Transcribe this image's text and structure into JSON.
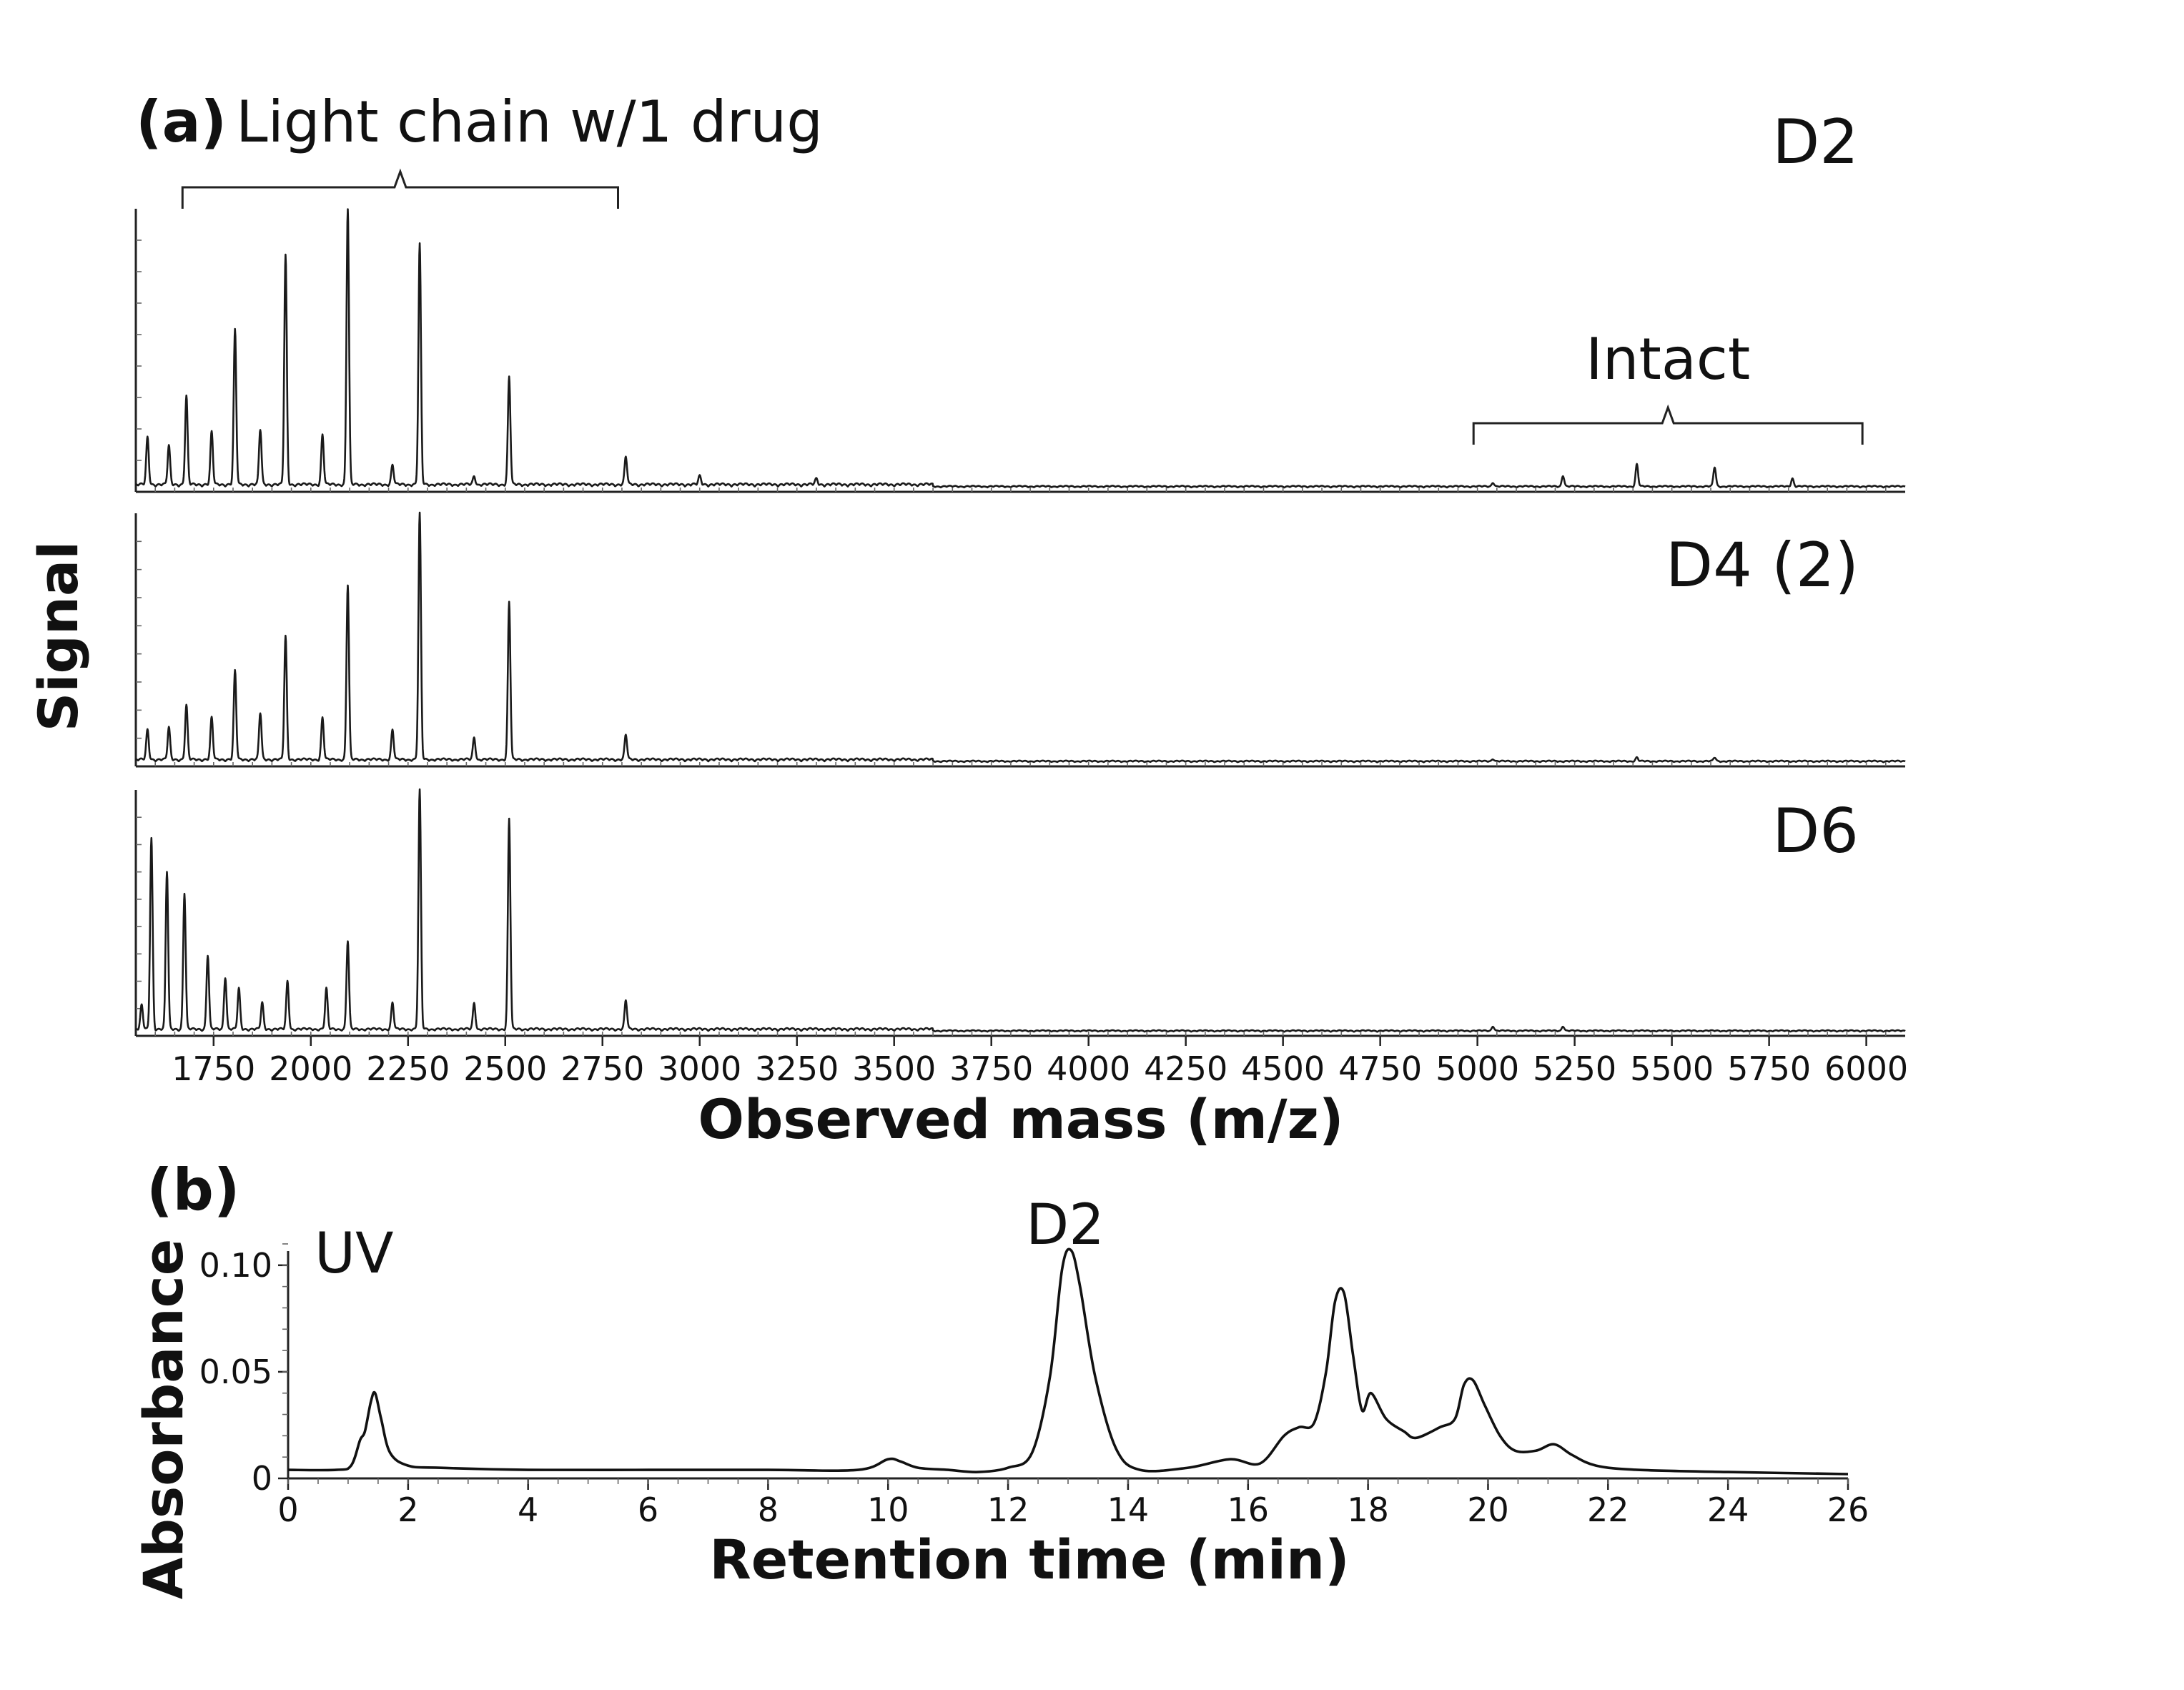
{
  "panel_a": {
    "letter": "(a)",
    "title": "Light chain w/1 drug",
    "bracket_right": "Intact",
    "ylabel": "Signal",
    "xlabel": "Observed mass (m/z)"
  },
  "panel_b": {
    "letter": "(b)",
    "trace_label": "UV",
    "peak_label": "D2",
    "ylabel": "Absorbance",
    "xlabel": "Retention time (min)"
  },
  "chart_data": [
    {
      "type": "line",
      "title": "Light chain w/1 drug",
      "xlabel": "Observed mass (m/z)",
      "ylabel": "Signal",
      "xlim": [
        1550,
        6100
      ],
      "ylim": [
        0,
        1
      ],
      "x_ticks": [
        1750,
        2000,
        2250,
        2500,
        2750,
        3000,
        3250,
        3500,
        3750,
        4000,
        4250,
        4500,
        4750,
        5000,
        5250,
        5500,
        5750,
        6000
      ],
      "x_tick_labels": [
        "1750",
        "2000",
        "2250",
        "2500",
        "2750",
        "3000",
        "3250",
        "3500",
        "3750",
        "4000",
        "4250",
        "4500",
        "4750",
        "5000",
        "5250",
        "5500",
        "5750",
        "6000"
      ],
      "annotations": [
        {
          "text": "Light chain w/1 drug",
          "x_range": [
            1670,
            2790
          ]
        },
        {
          "text": "Intact",
          "x_range": [
            4990,
            5990
          ]
        }
      ],
      "series": [
        {
          "name": "D2",
          "peaks": [
            {
              "x": 1580,
              "y": 0.17
            },
            {
              "x": 1635,
              "y": 0.14
            },
            {
              "x": 1680,
              "y": 0.32
            },
            {
              "x": 1745,
              "y": 0.19
            },
            {
              "x": 1805,
              "y": 0.56
            },
            {
              "x": 1870,
              "y": 0.2
            },
            {
              "x": 1935,
              "y": 0.83
            },
            {
              "x": 2030,
              "y": 0.18
            },
            {
              "x": 2095,
              "y": 1.0
            },
            {
              "x": 2210,
              "y": 0.07
            },
            {
              "x": 2280,
              "y": 0.87
            },
            {
              "x": 2420,
              "y": 0.03
            },
            {
              "x": 2510,
              "y": 0.39
            },
            {
              "x": 2810,
              "y": 0.1
            },
            {
              "x": 3000,
              "y": 0.03
            },
            {
              "x": 3300,
              "y": 0.02
            },
            {
              "x": 5040,
              "y": 0.015
            },
            {
              "x": 5220,
              "y": 0.04
            },
            {
              "x": 5410,
              "y": 0.08
            },
            {
              "x": 5610,
              "y": 0.07
            },
            {
              "x": 5810,
              "y": 0.03
            }
          ]
        },
        {
          "name": "D4 (2)",
          "peaks": [
            {
              "x": 1580,
              "y": 0.12
            },
            {
              "x": 1635,
              "y": 0.13
            },
            {
              "x": 1680,
              "y": 0.22
            },
            {
              "x": 1745,
              "y": 0.17
            },
            {
              "x": 1805,
              "y": 0.36
            },
            {
              "x": 1870,
              "y": 0.19
            },
            {
              "x": 1935,
              "y": 0.5
            },
            {
              "x": 2030,
              "y": 0.17
            },
            {
              "x": 2095,
              "y": 0.71
            },
            {
              "x": 2210,
              "y": 0.12
            },
            {
              "x": 2280,
              "y": 1.0
            },
            {
              "x": 2420,
              "y": 0.09
            },
            {
              "x": 2510,
              "y": 0.64
            },
            {
              "x": 2810,
              "y": 0.1
            },
            {
              "x": 5040,
              "y": 0.01
            },
            {
              "x": 5410,
              "y": 0.015
            },
            {
              "x": 5610,
              "y": 0.015
            }
          ]
        },
        {
          "name": "D6",
          "peaks": [
            {
              "x": 1565,
              "y": 0.1
            },
            {
              "x": 1590,
              "y": 0.8
            },
            {
              "x": 1630,
              "y": 0.66
            },
            {
              "x": 1675,
              "y": 0.57
            },
            {
              "x": 1735,
              "y": 0.31
            },
            {
              "x": 1780,
              "y": 0.22
            },
            {
              "x": 1815,
              "y": 0.17
            },
            {
              "x": 1875,
              "y": 0.11
            },
            {
              "x": 1940,
              "y": 0.2
            },
            {
              "x": 2040,
              "y": 0.17
            },
            {
              "x": 2095,
              "y": 0.37
            },
            {
              "x": 2210,
              "y": 0.11
            },
            {
              "x": 2280,
              "y": 1.0
            },
            {
              "x": 2420,
              "y": 0.11
            },
            {
              "x": 2510,
              "y": 0.88
            },
            {
              "x": 2810,
              "y": 0.12
            },
            {
              "x": 5040,
              "y": 0.02
            },
            {
              "x": 5220,
              "y": 0.02
            }
          ]
        }
      ]
    },
    {
      "type": "line",
      "xlabel": "Retention time (min)",
      "ylabel": "Absorbance",
      "xlim": [
        0,
        26
      ],
      "ylim": [
        0,
        0.11
      ],
      "x_ticks": [
        0,
        2,
        4,
        6,
        8,
        10,
        12,
        14,
        16,
        18,
        20,
        22,
        24,
        26
      ],
      "x_tick_labels": [
        "0",
        "2",
        "4",
        "6",
        "8",
        "10",
        "12",
        "14",
        "16",
        "18",
        "20",
        "22",
        "24",
        "26"
      ],
      "y_ticks": [
        0,
        0.05,
        0.1
      ],
      "y_tick_labels": [
        "0",
        "0.05",
        "0.10"
      ],
      "series": [
        {
          "name": "UV",
          "x": [
            0,
            0.8,
            1.05,
            1.2,
            1.28,
            1.38,
            1.45,
            1.55,
            1.7,
            2.0,
            2.5,
            4,
            6,
            8,
            9.5,
            10,
            10.2,
            10.5,
            11,
            11.5,
            12,
            12.4,
            12.7,
            12.9,
            13.05,
            13.2,
            13.45,
            13.8,
            14.2,
            15,
            15.7,
            16.2,
            16.6,
            16.85,
            17.1,
            17.3,
            17.45,
            17.6,
            17.75,
            17.9,
            18.05,
            18.3,
            18.6,
            18.8,
            19.2,
            19.45,
            19.6,
            19.75,
            19.95,
            20.2,
            20.45,
            20.8,
            21.1,
            21.4,
            21.8,
            22.5,
            24,
            26
          ],
          "y": [
            0.004,
            0.004,
            0.006,
            0.018,
            0.022,
            0.036,
            0.04,
            0.028,
            0.012,
            0.006,
            0.005,
            0.004,
            0.004,
            0.004,
            0.004,
            0.009,
            0.008,
            0.005,
            0.004,
            0.003,
            0.005,
            0.012,
            0.048,
            0.098,
            0.107,
            0.09,
            0.048,
            0.014,
            0.004,
            0.005,
            0.009,
            0.007,
            0.02,
            0.024,
            0.026,
            0.05,
            0.083,
            0.087,
            0.058,
            0.032,
            0.04,
            0.028,
            0.022,
            0.019,
            0.024,
            0.028,
            0.044,
            0.046,
            0.034,
            0.02,
            0.013,
            0.013,
            0.016,
            0.011,
            0.006,
            0.004,
            0.003,
            0.002
          ]
        }
      ]
    }
  ]
}
